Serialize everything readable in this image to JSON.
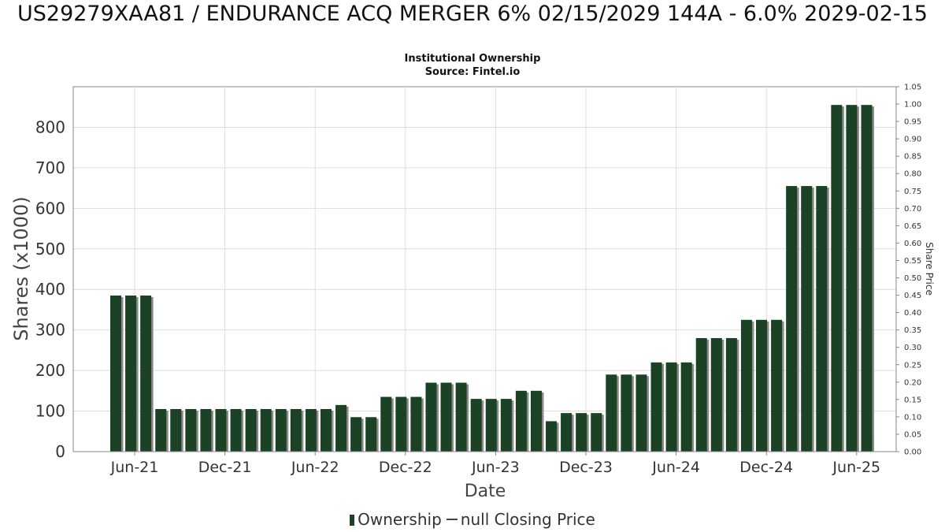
{
  "title": "US29279XAA81 / ENDURANCE ACQ MERGER 6% 02/15/2029 144A - 6.0% 2029-02-15",
  "subtitle": "Institutional Ownership",
  "source": "Source: Fintel.io",
  "legend": {
    "ownership": "Ownership",
    "price": "null Closing Price"
  },
  "colors": {
    "bar": "#1b4224",
    "bar_shadow": "#8a8a8a",
    "grid": "#dddddd",
    "axis": "#888888"
  },
  "chart_data": {
    "type": "bar",
    "xlabel": "Date",
    "ylabel": "Shares (x1000)",
    "y2label": "Share Price",
    "ylim": [
      0,
      900
    ],
    "y2lim": [
      0,
      1.05
    ],
    "yticks": [
      "0",
      "100",
      "200",
      "300",
      "400",
      "500",
      "600",
      "700",
      "800"
    ],
    "y2ticks": [
      "0.00",
      "0.05",
      "0.10",
      "0.15",
      "0.20",
      "0.25",
      "0.30",
      "0.35",
      "0.40",
      "0.45",
      "0.50",
      "0.55",
      "0.60",
      "0.65",
      "0.70",
      "0.75",
      "0.80",
      "0.85",
      "0.90",
      "0.95",
      "1.00",
      "1.05"
    ],
    "xticks": [
      "Jun-21",
      "Dec-21",
      "Jun-22",
      "Dec-22",
      "Jun-23",
      "Dec-23",
      "Jun-24",
      "Dec-24",
      "Jun-25"
    ],
    "legend_position": "bottom",
    "grid": true,
    "series": [
      {
        "name": "Ownership",
        "values": [
          385,
          385,
          385,
          105,
          105,
          105,
          105,
          105,
          105,
          105,
          105,
          105,
          105,
          105,
          105,
          115,
          85,
          85,
          135,
          135,
          135,
          170,
          170,
          170,
          130,
          130,
          130,
          150,
          150,
          75,
          95,
          95,
          95,
          190,
          190,
          190,
          220,
          220,
          220,
          280,
          280,
          280,
          325,
          325,
          325,
          655,
          655,
          655,
          855,
          855,
          855
        ]
      }
    ]
  }
}
